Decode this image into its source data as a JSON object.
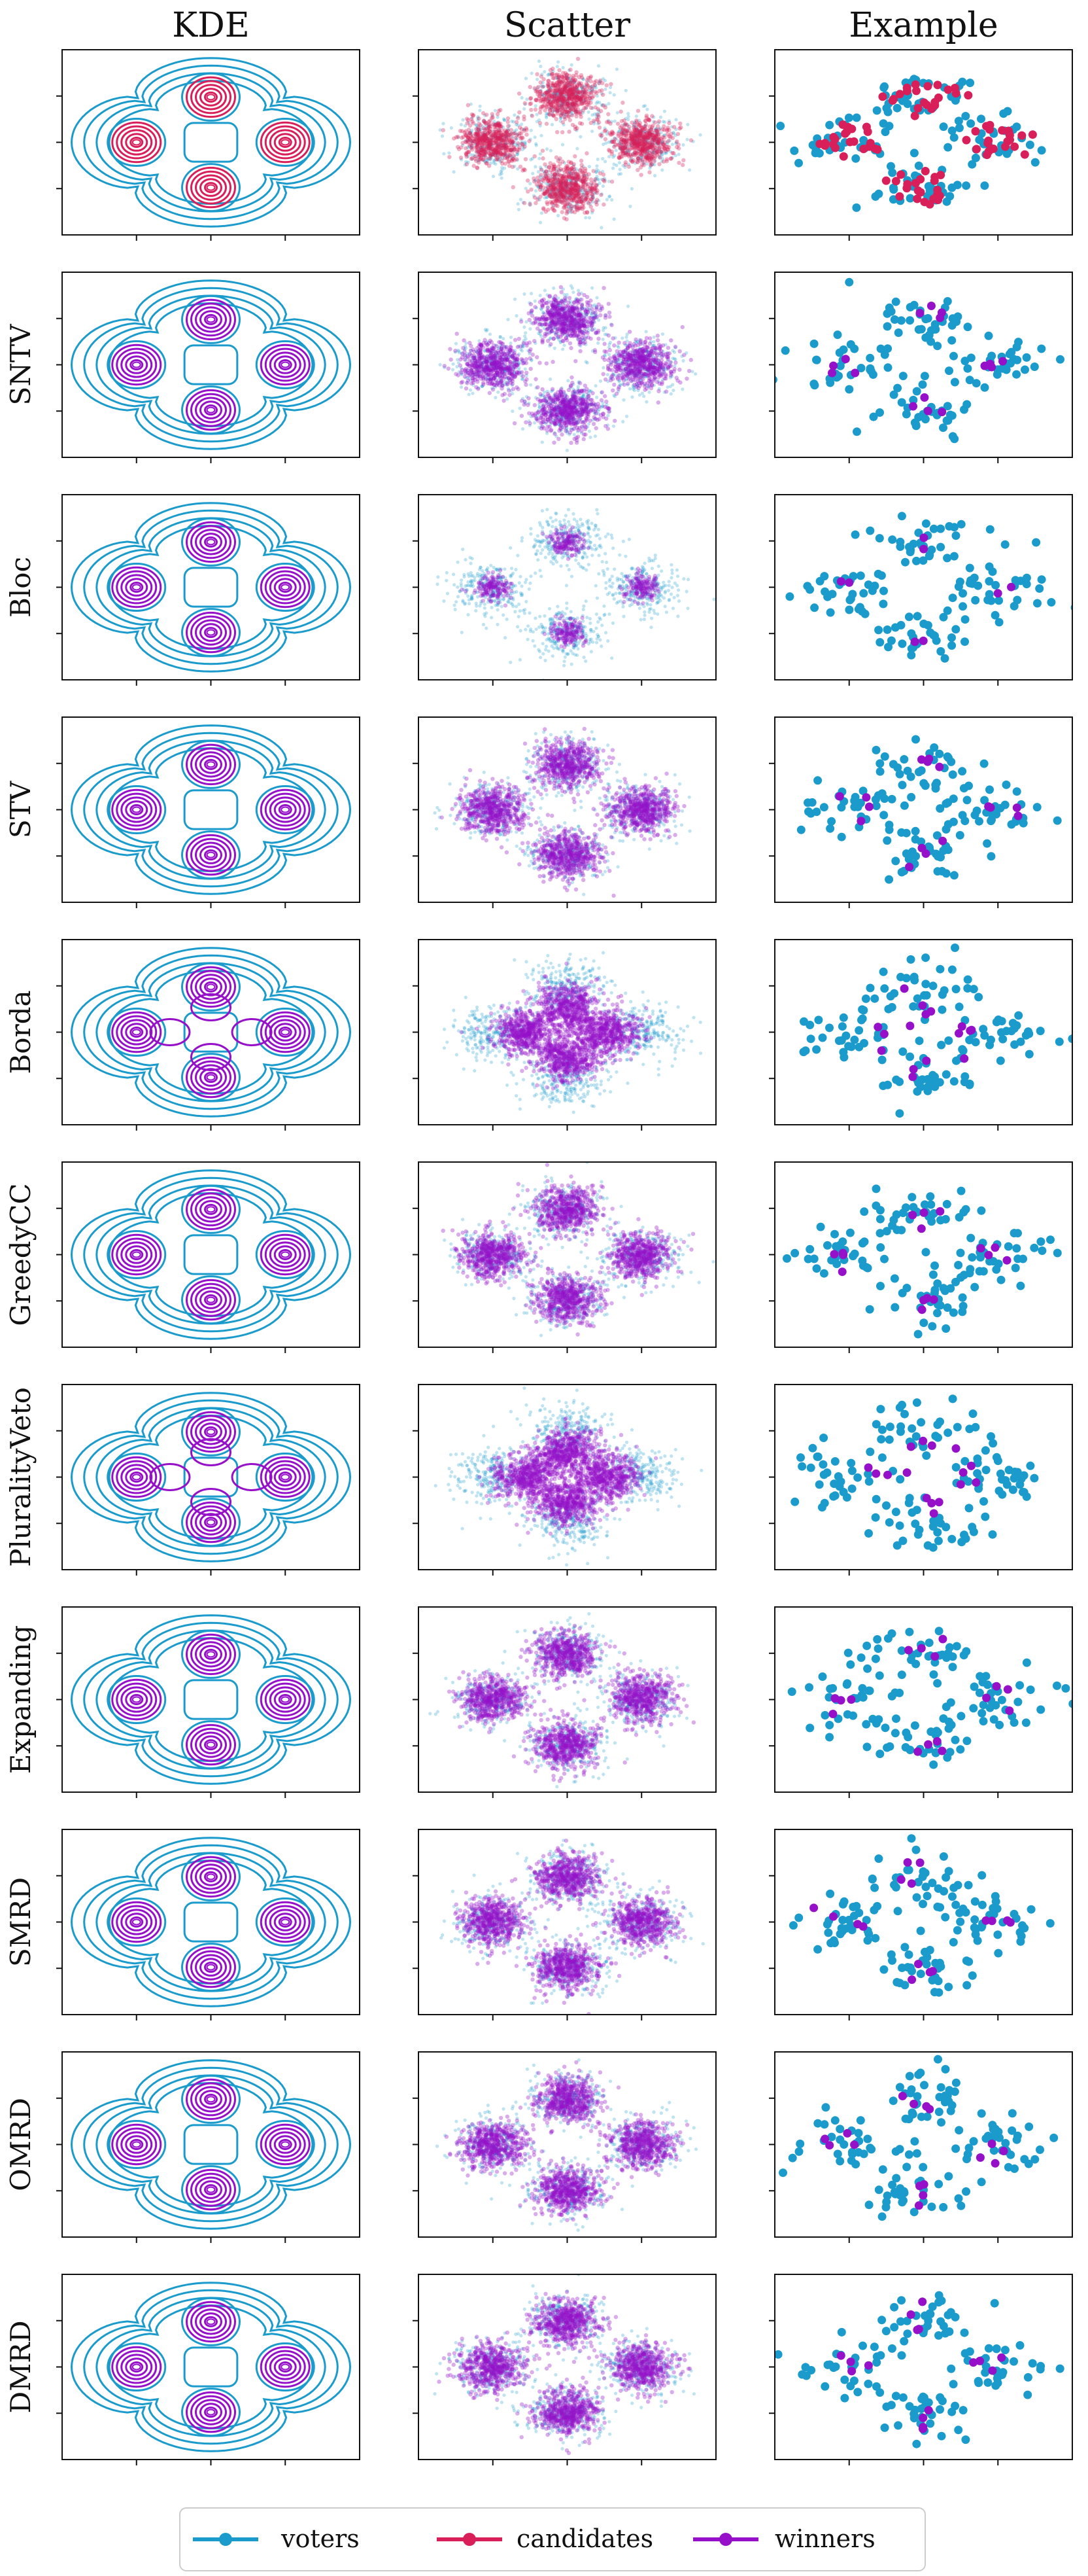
{
  "figure": {
    "columns": [
      "KDE",
      "Scatter",
      "Example"
    ],
    "rows": [
      "",
      "SNTV",
      "Bloc",
      "STV",
      "Borda",
      "GreedyCC",
      "PluralityVeto",
      "Expanding",
      "SMRD",
      "OMRD",
      "DMRD"
    ]
  },
  "legend": {
    "voters": "voters",
    "candidates": "candidates",
    "winners": "winners"
  },
  "colors": {
    "voters": "#1a9bcc",
    "candidates": "#d81f5a",
    "winners": "#9510c8"
  },
  "chart_data": {
    "type": "scatter",
    "description_rows": [
      "",
      "SNTV",
      "Bloc",
      "STV",
      "Borda",
      "GreedyCC",
      "PluralityVeto",
      "Expanding",
      "SMRD",
      "OMRD",
      "DMRD"
    ],
    "panel_types": [
      "KDE",
      "Scatter",
      "Example"
    ],
    "cluster_centers": [
      [
        -1,
        0
      ],
      [
        1,
        0
      ],
      [
        0,
        1
      ],
      [
        0,
        -1
      ]
    ],
    "grid": false,
    "legend_position": "bottom-center",
    "series": [
      {
        "name": "voters"
      },
      {
        "name": "candidates"
      },
      {
        "name": "winners"
      }
    ]
  }
}
